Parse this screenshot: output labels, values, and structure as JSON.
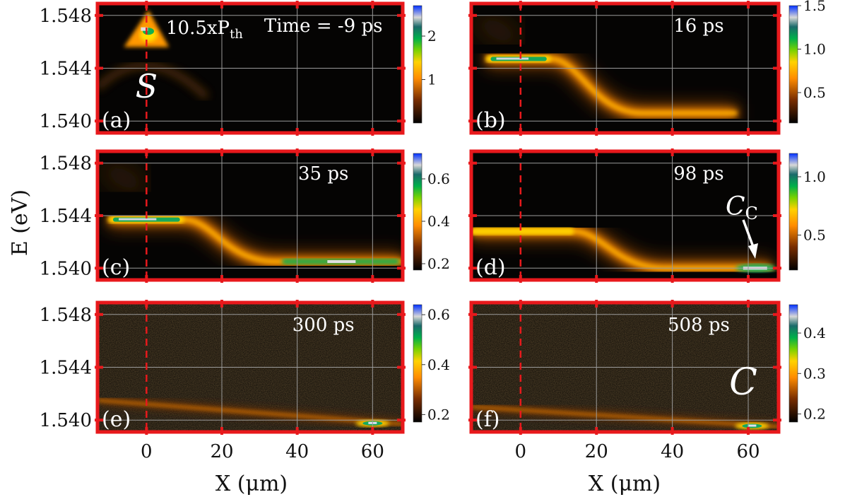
{
  "chart_data": {
    "type": "heatmap",
    "title": "",
    "xlabel": "X (μm)",
    "ylabel": "E (eV)",
    "x_ticks": [
      0,
      20,
      40,
      60
    ],
    "y_ticks": [
      1.54,
      1.544,
      1.548
    ],
    "y_tick_labels": [
      "1.540",
      "1.544",
      "1.548"
    ],
    "xlim": [
      -13,
      68
    ],
    "ylim": [
      1.5391,
      1.5489
    ],
    "dashed_line_x": 0,
    "panels": [
      {
        "id": "a",
        "label": "(a)",
        "time": "Time = -9 ps",
        "pump_label": {
          "main": "10.5xP",
          "sub": "th"
        },
        "marker": "S",
        "colorbar": {
          "range": [
            0.0,
            2.7
          ],
          "ticks": [
            1,
            2
          ]
        },
        "features": {
          "type": "cone",
          "x": 0.5,
          "e_top": 1.5472,
          "e_base": 1.5456,
          "half_width": 3.5,
          "peak_intensity": 2.7
        }
      },
      {
        "id": "b",
        "label": "(b)",
        "time": "16 ps",
        "colorbar": {
          "range": [
            0.15,
            1.5
          ],
          "ticks": [
            0.5,
            1.0,
            1.5
          ],
          "tick_labels": [
            "0.5",
            "1.0",
            "1.5"
          ]
        },
        "features": {
          "type": "plateau-curve",
          "x0": -9,
          "x1": 8,
          "e_plateau": 1.5447,
          "e_final": 1.5406,
          "x_end": 57,
          "peak_intensity": 1.5
        }
      },
      {
        "id": "c",
        "label": "(c)",
        "time": "35 ps",
        "colorbar": {
          "range": [
            0.17,
            0.72
          ],
          "ticks": [
            0.2,
            0.4,
            0.6
          ]
        },
        "features": {
          "type": "plateau-curve",
          "x0": -10,
          "x1": 10,
          "e_plateau": 1.5437,
          "e_final": 1.5405,
          "x_end": 68,
          "peak_intensity": 0.72
        }
      },
      {
        "id": "d",
        "label": "(d)",
        "time": "98 ps",
        "marker": "C",
        "marker_subscript": "C",
        "colorbar": {
          "range": [
            0.2,
            1.2
          ],
          "ticks": [
            0.5,
            1.0
          ],
          "tick_labels": [
            "0.5",
            "1.0"
          ]
        },
        "features": {
          "type": "plateau-curve",
          "x0": -13,
          "x1": 14,
          "e_plateau": 1.5428,
          "e_final": 1.54,
          "x_end": 66,
          "peak_intensity": 1.2,
          "condensate_x": 62
        }
      },
      {
        "id": "e",
        "label": "(e)",
        "time": "300 ps",
        "colorbar": {
          "range": [
            0.17,
            0.64
          ],
          "ticks": [
            0.2,
            0.4,
            0.6
          ]
        },
        "features": {
          "type": "line",
          "e_start": 1.5415,
          "e_end": 1.5397,
          "x_spot": 60,
          "peak_intensity": 0.64
        }
      },
      {
        "id": "f",
        "label": "(f)",
        "time": "508 ps",
        "marker": "C",
        "colorbar": {
          "range": [
            0.18,
            0.47
          ],
          "ticks": [
            0.2,
            0.3,
            0.4
          ]
        },
        "features": {
          "type": "line",
          "e_start": 1.541,
          "e_end": 1.5395,
          "x_spot": 61,
          "peak_intensity": 0.47
        }
      }
    ]
  },
  "colors": {
    "frame": "#e8191c",
    "grid": "#9a9a9a",
    "dashed": "#e8191c",
    "background_dark": "#050403",
    "background_noise": "#2a1a08"
  }
}
